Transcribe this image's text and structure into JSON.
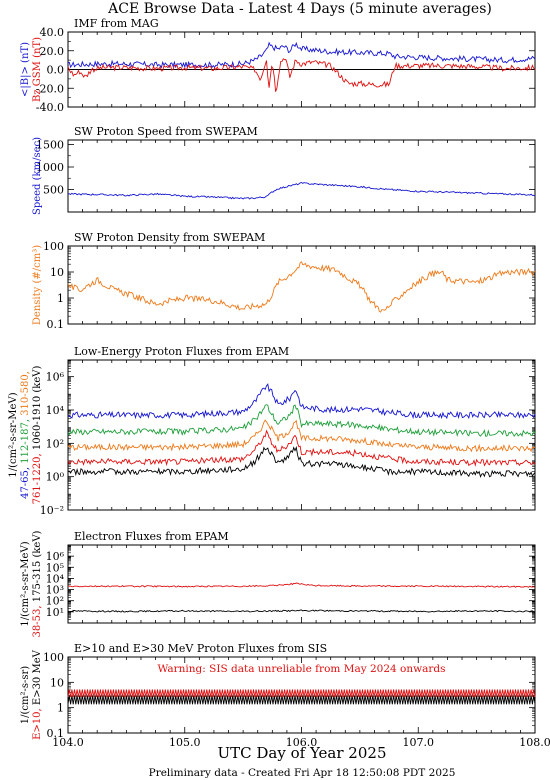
{
  "page": {
    "title": "ACE Browse Data - Latest 4 Days (5 minute averages)",
    "xlabel": "UTC Day of Year 2025",
    "footer": "Preliminary data - Created Fri Apr 18 12:50:08 PDT 2025",
    "x_ticks": [
      "104.0",
      "105.0",
      "106.0",
      "107.0",
      "108.0"
    ],
    "colors": {
      "blue": "#1515d0",
      "red": "#e01010",
      "orange": "#ee7a1a",
      "green": "#1e9e3a",
      "black": "#000000"
    }
  },
  "chart_data": [
    {
      "type": "line",
      "title": "IMF from MAG",
      "xlim": [
        104.0,
        108.0
      ],
      "ylim": [
        -40,
        40
      ],
      "yticks": [
        "-40.0",
        "-20.0",
        "0.0",
        "20.0",
        "40.0"
      ],
      "ylabel_lines": [
        {
          "text": "<|B|> (nT)",
          "color": "#1515d0"
        },
        {
          "text": "Bz GSM (nT)",
          "color": "#e01010"
        }
      ],
      "zero_line": true,
      "series": [
        {
          "name": "<|B|> (nT)",
          "color": "#1515d0",
          "x": [
            104.0,
            104.25,
            104.5,
            104.75,
            105.0,
            105.25,
            105.5,
            105.6,
            105.65,
            105.7,
            105.72,
            105.75,
            105.8,
            105.85,
            105.9,
            105.95,
            106.0,
            106.25,
            106.5,
            106.75,
            106.8,
            107.0,
            107.25,
            107.5,
            107.75,
            108.0
          ],
          "y": [
            5,
            6,
            6,
            5,
            5,
            5,
            6,
            10,
            14,
            20,
            26,
            24,
            22,
            25,
            20,
            28,
            22,
            19,
            18,
            17,
            14,
            13,
            12,
            11,
            10,
            12
          ]
        },
        {
          "name": "Bz GSM (nT)",
          "color": "#e01010",
          "x": [
            104.0,
            104.05,
            104.1,
            104.15,
            104.2,
            104.3,
            104.5,
            104.75,
            105.0,
            105.25,
            105.5,
            105.6,
            105.65,
            105.7,
            105.72,
            105.75,
            105.78,
            105.82,
            105.86,
            105.9,
            105.95,
            106.0,
            106.1,
            106.25,
            106.4,
            106.5,
            106.6,
            106.75,
            106.8,
            107.0,
            107.25,
            107.5,
            107.75,
            108.0
          ],
          "y": [
            2,
            -6,
            -2,
            -8,
            0,
            2,
            2,
            1,
            2,
            1,
            3,
            0,
            -10,
            12,
            -20,
            10,
            -24,
            8,
            14,
            -8,
            10,
            6,
            8,
            4,
            -15,
            -15,
            -16,
            -16,
            4,
            4,
            4,
            3,
            1,
            2
          ]
        }
      ]
    },
    {
      "type": "line",
      "title": "SW Proton Speed from SWEPAM",
      "xlim": [
        104.0,
        108.0
      ],
      "ylim": [
        0,
        1600
      ],
      "yticks": [
        "500",
        "1000",
        "1500"
      ],
      "ylabel_lines": [
        {
          "text": "Speed (km/sec)",
          "color": "#1515d0"
        }
      ],
      "series": [
        {
          "name": "Speed (km/sec)",
          "color": "#1515d0",
          "x": [
            104.0,
            104.25,
            104.5,
            104.75,
            105.0,
            105.25,
            105.5,
            105.6,
            105.7,
            105.75,
            105.8,
            105.9,
            106.0,
            106.25,
            106.5,
            106.75,
            107.0,
            107.25,
            107.5,
            107.75,
            108.0
          ],
          "y": [
            400,
            390,
            370,
            400,
            350,
            330,
            300,
            310,
            340,
            450,
            520,
            580,
            640,
            600,
            560,
            500,
            460,
            440,
            420,
            400,
            380
          ]
        }
      ]
    },
    {
      "type": "line",
      "title": "SW Proton Density from SWEPAM",
      "xlim": [
        104.0,
        108.0
      ],
      "ylim": [
        0.1,
        100
      ],
      "yscale": "log",
      "yticks": [
        "0.1",
        "1",
        "10",
        "100"
      ],
      "ylabel_lines": [
        {
          "text": "Density (#/cm³)",
          "color": "#ee7a1a"
        }
      ],
      "series": [
        {
          "name": "Density (#/cm³)",
          "color": "#ee7a1a",
          "x": [
            104.0,
            104.1,
            104.25,
            104.4,
            104.5,
            104.75,
            105.0,
            105.25,
            105.5,
            105.6,
            105.7,
            105.75,
            105.8,
            105.9,
            106.0,
            106.15,
            106.3,
            106.5,
            106.6,
            106.7,
            106.8,
            106.9,
            107.0,
            107.1,
            107.2,
            107.25,
            107.5,
            107.75,
            108.0
          ],
          "y": [
            3,
            2,
            5,
            2,
            1.5,
            0.6,
            1.0,
            0.8,
            0.4,
            0.5,
            0.6,
            1.5,
            4,
            8,
            20,
            15,
            12,
            3,
            0.7,
            0.3,
            0.8,
            2,
            4,
            8,
            10,
            5,
            4,
            10,
            10
          ]
        }
      ]
    },
    {
      "type": "line",
      "title": "Low-Energy Proton Fluxes from EPAM",
      "xlim": [
        104.0,
        108.0
      ],
      "ylim": [
        0.01,
        10000000
      ],
      "yscale": "log",
      "yticks": [
        "10⁻²",
        "10⁰",
        "10²",
        "10⁴",
        "10⁶"
      ],
      "ylabel_lines": [
        {
          "text": "1/(cm²-s-sr-MeV)",
          "color": "#000000"
        },
        {
          "parts": [
            {
              "text": "47-65, ",
              "color": "#1515d0"
            },
            {
              "text": "112-187, ",
              "color": "#1e9e3a"
            },
            {
              "text": "310-580,",
              "color": "#ee7a1a"
            }
          ]
        },
        {
          "parts": [
            {
              "text": "761-1220, ",
              "color": "#e01010"
            },
            {
              "text": "1060-1910 (keV)",
              "color": "#000000"
            }
          ]
        }
      ],
      "series": [
        {
          "name": "47-65",
          "color": "#1515d0",
          "x": [
            104.0,
            104.5,
            105.0,
            105.5,
            105.6,
            105.7,
            105.75,
            105.8,
            105.9,
            105.95,
            106.0,
            106.25,
            106.5,
            106.75,
            107.0,
            107.5,
            108.0
          ],
          "y": [
            5000,
            5000,
            5000,
            8000,
            30000,
            300000,
            100000,
            20000,
            50000,
            200000,
            15000,
            10000,
            12000,
            7000,
            5000,
            5000,
            5000
          ]
        },
        {
          "name": "112-187",
          "color": "#1e9e3a",
          "x": [
            104.0,
            104.5,
            105.0,
            105.5,
            105.6,
            105.7,
            105.75,
            105.8,
            105.9,
            105.95,
            106.0,
            106.25,
            106.5,
            106.75,
            107.0,
            107.5,
            108.0
          ],
          "y": [
            500,
            500,
            500,
            800,
            2500,
            20000,
            5000,
            1500,
            5000,
            20000,
            1500,
            1500,
            1200,
            700,
            500,
            400,
            400
          ]
        },
        {
          "name": "310-580",
          "color": "#ee7a1a",
          "x": [
            104.0,
            104.5,
            105.0,
            105.5,
            105.6,
            105.7,
            105.75,
            105.8,
            105.9,
            105.95,
            106.0,
            106.25,
            106.5,
            106.75,
            107.0,
            107.5,
            108.0
          ],
          "y": [
            60,
            60,
            60,
            90,
            250,
            2500,
            600,
            200,
            600,
            2000,
            200,
            200,
            150,
            80,
            60,
            50,
            50
          ]
        },
        {
          "name": "761-1220",
          "color": "#e01010",
          "x": [
            104.0,
            104.5,
            105.0,
            105.5,
            105.6,
            105.7,
            105.75,
            105.8,
            105.9,
            105.95,
            106.0,
            106.25,
            106.5,
            106.75,
            107.0,
            107.5,
            108.0
          ],
          "y": [
            8,
            8,
            8,
            12,
            40,
            400,
            100,
            30,
            100,
            300,
            30,
            30,
            25,
            12,
            8,
            7,
            7
          ]
        },
        {
          "name": "1060-1910",
          "color": "#000000",
          "x": [
            104.0,
            104.5,
            105.0,
            105.5,
            105.6,
            105.7,
            105.75,
            105.8,
            105.9,
            105.95,
            106.0,
            106.25,
            106.5,
            106.75,
            107.0,
            107.5,
            108.0
          ],
          "y": [
            2,
            2,
            2,
            3,
            8,
            60,
            20,
            6,
            20,
            50,
            6,
            6,
            4,
            2,
            2,
            1.5,
            1.5
          ]
        }
      ]
    },
    {
      "type": "line",
      "title": "Electron Fluxes from EPAM",
      "xlim": [
        104.0,
        108.0
      ],
      "ylim": [
        1,
        10000000
      ],
      "yscale": "log",
      "yticks": [
        "10¹",
        "10²",
        "10³",
        "10⁴",
        "10⁵",
        "10⁶"
      ],
      "ylabel_lines": [
        {
          "text": "1/(cm²-s-sr-MeV)",
          "color": "#000000"
        },
        {
          "parts": [
            {
              "text": "38-53, ",
              "color": "#e01010"
            },
            {
              "text": "175-315 (keV)",
              "color": "#000000"
            }
          ]
        }
      ],
      "series": [
        {
          "name": "38-53",
          "color": "#e01010",
          "x": [
            104.0,
            104.5,
            105.0,
            105.5,
            105.75,
            105.95,
            106.1,
            106.5,
            107.0,
            107.5,
            108.0
          ],
          "y": [
            2000,
            2000,
            1900,
            2000,
            2200,
            3500,
            2300,
            2100,
            2000,
            1900,
            1800
          ]
        },
        {
          "name": "175-315",
          "color": "#000000",
          "x": [
            104.0,
            104.5,
            105.0,
            105.5,
            106.0,
            106.5,
            107.0,
            107.5,
            108.0
          ],
          "y": [
            12,
            11,
            12,
            11,
            13,
            12,
            11,
            12,
            11
          ]
        }
      ]
    },
    {
      "type": "line",
      "title": "E>10 and E>30 MeV Proton Fluxes from SIS",
      "xlim": [
        104.0,
        108.0
      ],
      "ylim": [
        0.1,
        100
      ],
      "yscale": "log",
      "yticks": [
        "0.1",
        "1",
        "10",
        "100"
      ],
      "annotation": "Warning: SIS data unreliable from May 2024 onwards",
      "ylabel_lines": [
        {
          "text": "1/(cm²-s-sr)",
          "color": "#000000"
        },
        {
          "parts": [
            {
              "text": "E>10, ",
              "color": "#e01010"
            },
            {
              "text": "E>30 MeV",
              "color": "#000000"
            }
          ]
        }
      ],
      "series": [
        {
          "name": "E>10",
          "color": "#e01010",
          "x": [
            104.0,
            108.0
          ],
          "y": [
            4,
            4
          ]
        },
        {
          "name": "E>30",
          "color": "#000000",
          "x": [
            104.0,
            108.0
          ],
          "y": [
            2.2,
            2.2
          ]
        }
      ]
    }
  ]
}
